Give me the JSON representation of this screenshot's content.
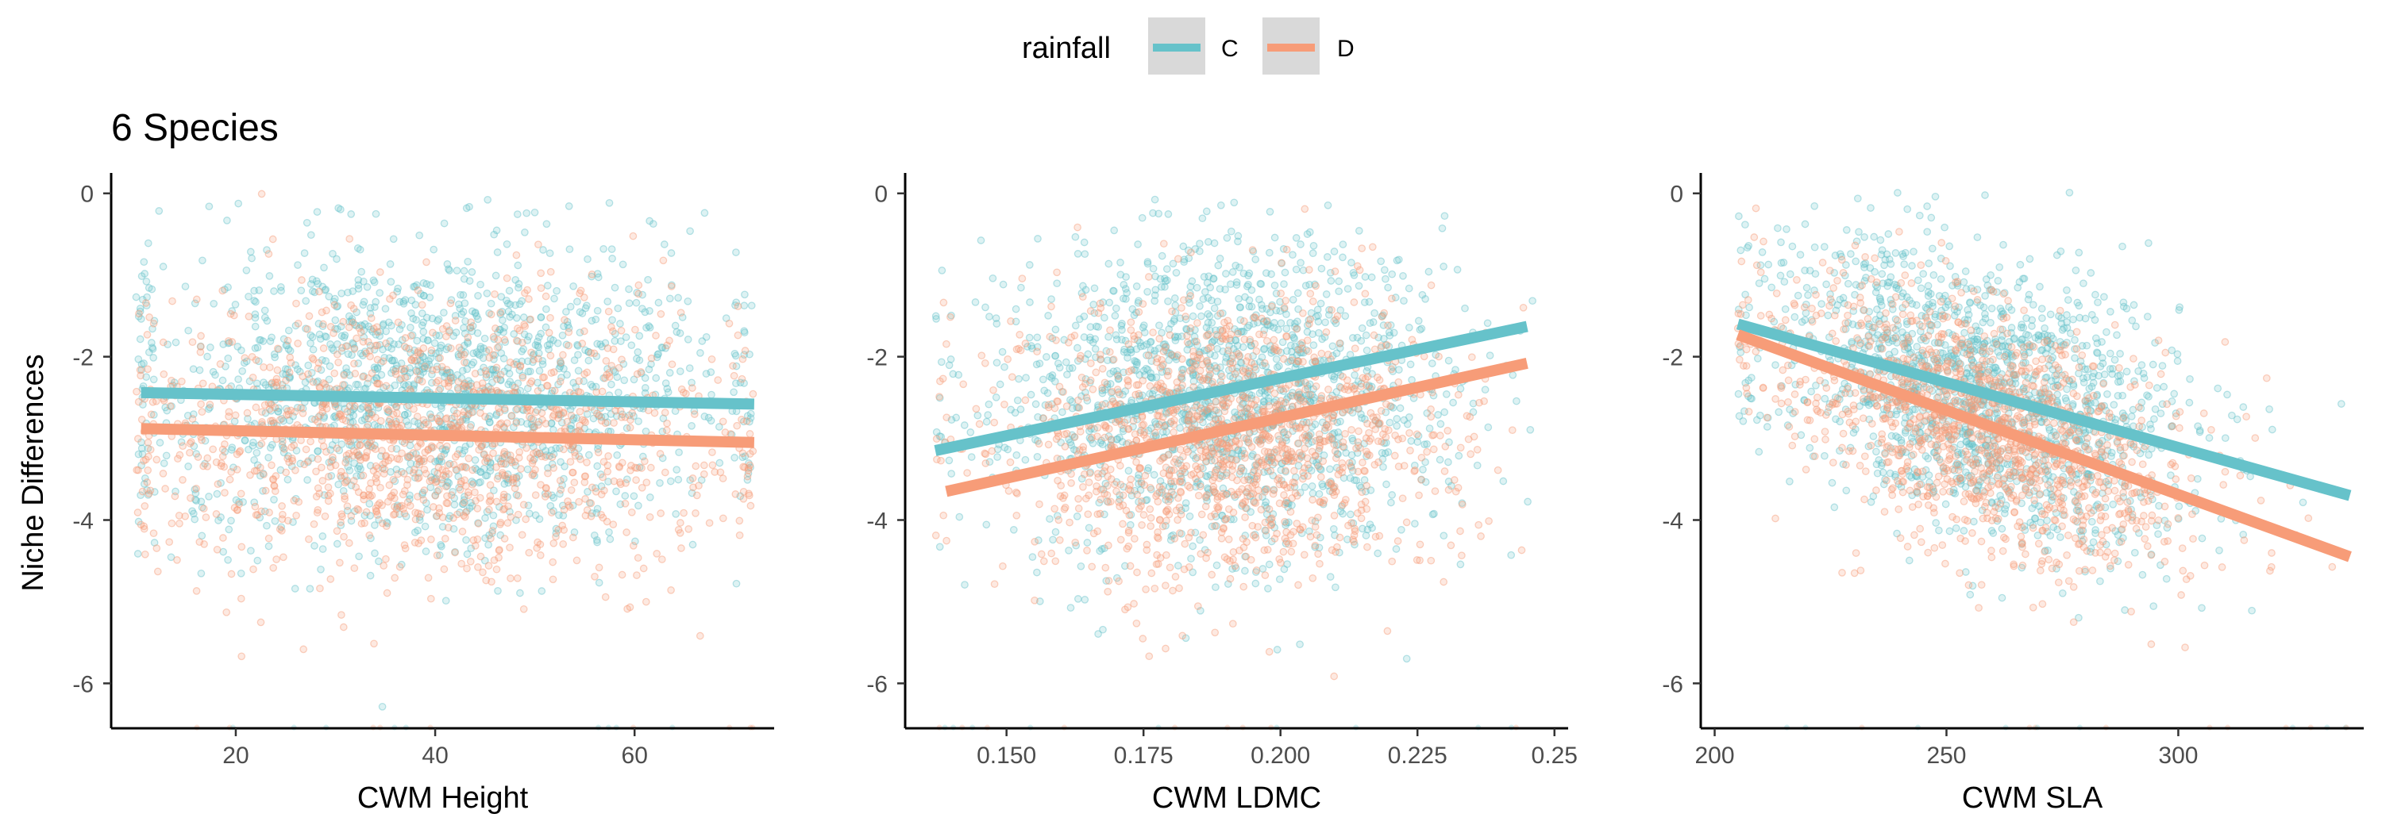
{
  "title": "6 Species",
  "legend": {
    "title": "rainfall",
    "placement": "top",
    "entries": [
      {
        "label": "C",
        "color": "#66C2CA"
      },
      {
        "label": "D",
        "color": "#F79C78"
      }
    ]
  },
  "ylabel": "Niche Differences",
  "chart_data": [
    {
      "type": "scatter",
      "xlabel": "CWM Height",
      "ylabel": "Niche Differences",
      "xlim": [
        7.5,
        74
      ],
      "ylim": [
        -6.55,
        0.25
      ],
      "xticks": [
        20,
        40,
        60
      ],
      "xtick_labels": [
        "20",
        "40",
        "60"
      ],
      "yticks": [
        0,
        -2,
        -4,
        -6
      ],
      "ytick_labels": [
        "0",
        "-2",
        "-4",
        "-6"
      ],
      "grid": false,
      "series": [
        {
          "name": "C",
          "color": "#66C2CA",
          "fit": [
            [
              10.5,
              -2.44
            ],
            [
              72,
              -2.58
            ]
          ],
          "cloud": {
            "x_center": 40,
            "x_spread": 15,
            "x_range": [
              10,
              72
            ],
            "y_center": -2.45,
            "y_spread": 0.95,
            "n": 1500
          }
        },
        {
          "name": "D",
          "color": "#F79C78",
          "fit": [
            [
              10.5,
              -2.88
            ],
            [
              72,
              -3.05
            ]
          ],
          "cloud": {
            "x_center": 40,
            "x_spread": 15,
            "x_range": [
              10,
              72
            ],
            "y_center": -3.0,
            "y_spread": 0.85,
            "n": 1300
          }
        }
      ]
    },
    {
      "type": "scatter",
      "xlabel": "CWM LDMC",
      "ylabel": "",
      "xlim": [
        0.1315,
        0.2525
      ],
      "ylim": [
        -6.55,
        0.25
      ],
      "xticks": [
        0.15,
        0.175,
        0.2,
        0.225,
        0.25
      ],
      "xtick_labels": [
        "0.150",
        "0.175",
        "0.200",
        "0.225",
        "0.25"
      ],
      "yticks": [
        0,
        -2,
        -4,
        -6
      ],
      "ytick_labels": [
        "0",
        "-2",
        "-4",
        "-6"
      ],
      "grid": false,
      "series": [
        {
          "name": "C",
          "color": "#66C2CA",
          "fit": [
            [
              0.137,
              -3.15
            ],
            [
              0.245,
              -1.63
            ]
          ],
          "cloud": {
            "x_center": 0.19,
            "x_spread": 0.02,
            "x_range": [
              0.137,
              0.246
            ],
            "y_center": -2.45,
            "y_spread": 0.95,
            "n": 1500
          }
        },
        {
          "name": "D",
          "color": "#F79C78",
          "fit": [
            [
              0.139,
              -3.65
            ],
            [
              0.245,
              -2.08
            ]
          ],
          "cloud": {
            "x_center": 0.19,
            "x_spread": 0.02,
            "x_range": [
              0.137,
              0.246
            ],
            "y_center": -3.0,
            "y_spread": 0.85,
            "n": 1300
          }
        }
      ]
    },
    {
      "type": "scatter",
      "xlabel": "CWM SLA",
      "ylabel": "",
      "xlim": [
        197,
        340
      ],
      "ylim": [
        -6.55,
        0.25
      ],
      "xticks": [
        200,
        250,
        300
      ],
      "xtick_labels": [
        "200",
        "250",
        "300"
      ],
      "yticks": [
        0,
        -2,
        -4,
        -6
      ],
      "ytick_labels": [
        "0",
        "-2",
        "-4",
        "-6"
      ],
      "grid": false,
      "series": [
        {
          "name": "C",
          "color": "#66C2CA",
          "fit": [
            [
              205,
              -1.6
            ],
            [
              337,
              -3.7
            ]
          ],
          "cloud": {
            "x_center": 258,
            "x_spread": 22,
            "x_range": [
              205,
              337
            ],
            "y_slope": -0.0159,
            "y_intercept_at_center": -2.4,
            "y_spread": 0.85,
            "n": 1500
          }
        },
        {
          "name": "D",
          "color": "#F79C78",
          "fit": [
            [
              205,
              -1.73
            ],
            [
              337,
              -4.45
            ]
          ],
          "cloud": {
            "x_center": 258,
            "x_spread": 22,
            "x_range": [
              205,
              337
            ],
            "y_slope": -0.0206,
            "y_intercept_at_center": -2.85,
            "y_spread": 0.75,
            "n": 1300
          }
        }
      ]
    }
  ]
}
